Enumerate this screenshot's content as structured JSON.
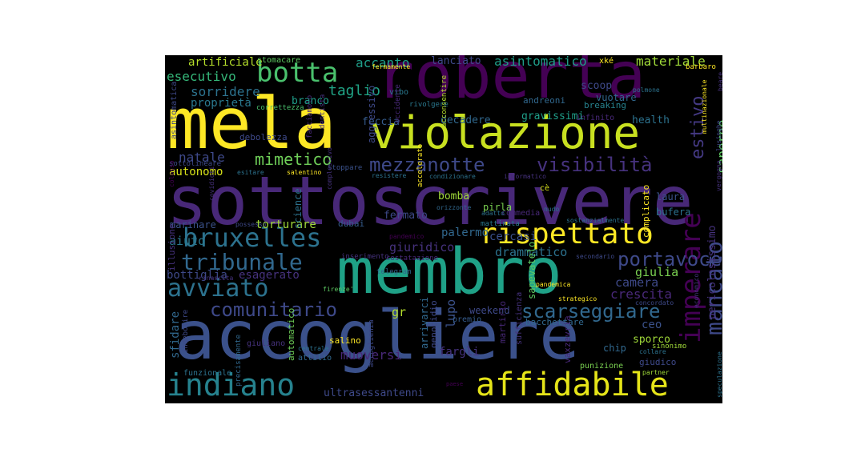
{
  "word_cloud": {
    "background": "#000000",
    "palette": [
      "#440154",
      "#46327e",
      "#365c8d",
      "#277f8e",
      "#1fa187",
      "#4ac16d",
      "#a0da39",
      "#fde725"
    ],
    "words": [
      {
        "text": "roberta",
        "color": "#440154"
      },
      {
        "text": "mela",
        "color": "#fde725"
      },
      {
        "text": "violazione",
        "color": "#c8e020"
      },
      {
        "text": "sottoscrivere",
        "color": "#482878"
      },
      {
        "text": "membro",
        "color": "#1fa187"
      },
      {
        "text": "accogliere",
        "color": "#3b518b"
      },
      {
        "text": "bruxelles",
        "color": "#2c728e"
      },
      {
        "text": "rispettato",
        "color": "#fde725"
      },
      {
        "text": "affidabile",
        "color": "#e5e419"
      },
      {
        "text": "indiano",
        "color": "#26828e"
      },
      {
        "text": "avviato",
        "color": "#2c728e"
      },
      {
        "text": "tribunale",
        "color": "#31688e"
      },
      {
        "text": "comunitario",
        "color": "#3e4989"
      },
      {
        "text": "botta",
        "color": "#4ac16d"
      },
      {
        "text": "mezzanotte",
        "color": "#3e4989"
      },
      {
        "text": "visibilità",
        "color": "#46327e"
      },
      {
        "text": "imperare",
        "color": "#440154"
      },
      {
        "text": "scarseggiare",
        "color": "#31688e"
      },
      {
        "text": "mimetico",
        "color": "#6ece58"
      },
      {
        "text": "portavoce",
        "color": "#3e4989"
      },
      {
        "text": "mancato",
        "color": "#3e4989"
      },
      {
        "text": "estivo",
        "color": "#443983"
      },
      {
        "text": "saperne",
        "color": "#5ec962"
      },
      {
        "text": "accanto",
        "color": "#1f9e89"
      },
      {
        "text": "asintomatico",
        "color": "#1f9e89"
      },
      {
        "text": "materiale",
        "color": "#a0da39"
      },
      {
        "text": "esecutivo",
        "color": "#35b779"
      },
      {
        "text": "sorridere",
        "color": "#2c728e"
      },
      {
        "text": "taglio",
        "color": "#20a486"
      },
      {
        "text": "artificiale",
        "color": "#b5de2b"
      },
      {
        "text": "lanciato",
        "color": "#3e4989"
      },
      {
        "text": "autonomo",
        "color": "#d8e219"
      },
      {
        "text": "natale",
        "color": "#3e4989"
      },
      {
        "text": "aiuto",
        "color": "#2a788e"
      },
      {
        "text": "torturare",
        "color": "#a0da39"
      },
      {
        "text": "palermo",
        "color": "#31688e"
      },
      {
        "text": "giuridico",
        "color": "#46327e"
      },
      {
        "text": "drammatico",
        "color": "#2c728e"
      },
      {
        "text": "cercasi",
        "color": "#3b518b"
      },
      {
        "text": "crescita",
        "color": "#482878"
      },
      {
        "text": "camera",
        "color": "#3e4989"
      },
      {
        "text": "giulia",
        "color": "#7ad151"
      },
      {
        "text": "lupo",
        "color": "#3b528b"
      },
      {
        "text": "fargli",
        "color": "#46327e"
      },
      {
        "text": "muoversi",
        "color": "#482878"
      },
      {
        "text": "ultrasessantenni",
        "color": "#3e4989"
      },
      {
        "text": "ceo",
        "color": "#3b528b"
      },
      {
        "text": "sfidare",
        "color": "#31688e"
      },
      {
        "text": "esagerato",
        "color": "#46327e"
      },
      {
        "text": "bottiglia",
        "color": "#3e4989"
      },
      {
        "text": "proprietà",
        "color": "#2a788e"
      },
      {
        "text": "branco",
        "color": "#1f9e89"
      },
      {
        "text": "feccia",
        "color": "#365c8d"
      },
      {
        "text": "decadere",
        "color": "#31688e"
      },
      {
        "text": "gravissimi",
        "color": "#1f9e89"
      },
      {
        "text": "health",
        "color": "#2c728e"
      },
      {
        "text": "scoop",
        "color": "#3e4989"
      },
      {
        "text": "vuotare",
        "color": "#31688e"
      },
      {
        "text": "andreoni",
        "color": "#31688e"
      },
      {
        "text": "breaking",
        "color": "#26828e"
      },
      {
        "text": "infinito",
        "color": "#482878"
      },
      {
        "text": "debolezza",
        "color": "#3e4989"
      },
      {
        "text": "aggressivo",
        "color": "#3e4989"
      },
      {
        "text": "pericolosissimo",
        "color": "#46327e"
      },
      {
        "text": "bomba",
        "color": "#a0da39"
      },
      {
        "text": "pirla",
        "color": "#7ad151"
      },
      {
        "text": "laura",
        "color": "#3b528b"
      },
      {
        "text": "bufera",
        "color": "#2c728e"
      },
      {
        "text": "complicato",
        "color": "#fde725"
      },
      {
        "text": "fermato",
        "color": "#3e4989"
      },
      {
        "text": "gr",
        "color": "#b5de2b"
      },
      {
        "text": "marinare",
        "color": "#3b528b"
      },
      {
        "text": "illusione",
        "color": "#46327e"
      },
      {
        "text": "dubai",
        "color": "#365c8d"
      },
      {
        "text": "science",
        "color": "#2c728e"
      },
      {
        "text": "salino",
        "color": "#fde725"
      },
      {
        "text": "chip",
        "color": "#31688e"
      },
      {
        "text": "sporco",
        "color": "#a0da39"
      },
      {
        "text": "giudico",
        "color": "#3e4989"
      },
      {
        "text": "weekend",
        "color": "#3e4989"
      },
      {
        "text": "bacchettare",
        "color": "#31688e"
      },
      {
        "text": "premio",
        "color": "#365c8d"
      },
      {
        "text": "martirio",
        "color": "#482878"
      },
      {
        "text": "sapevatelo",
        "color": "#5ec962"
      },
      {
        "text": "sufficienza",
        "color": "#46327e"
      },
      {
        "text": "vaxzevria",
        "color": "#482878"
      },
      {
        "text": "punizione",
        "color": "#7ad151"
      },
      {
        "text": "arrivarci",
        "color": "#31688e"
      },
      {
        "text": "genocidio",
        "color": "#3e4989"
      },
      {
        "text": "automatico",
        "color": "#6ece58"
      },
      {
        "text": "attilio",
        "color": "#31688e"
      },
      {
        "text": "giuliano",
        "color": "#46327e"
      },
      {
        "text": "precisamente",
        "color": "#31688e"
      },
      {
        "text": "indebolire",
        "color": "#3e4989"
      },
      {
        "text": "funzionale",
        "color": "#2c728e"
      },
      {
        "text": "stomacare",
        "color": "#5ec962"
      },
      {
        "text": "correttezza",
        "color": "#4ac16d"
      },
      {
        "text": "fermamente",
        "color": "#fde725"
      },
      {
        "text": "acconsentire",
        "color": "#b5de2b"
      },
      {
        "text": "xké",
        "color": "#fde725"
      },
      {
        "text": "barbaro",
        "color": "#fde725"
      },
      {
        "text": "polmone",
        "color": "#2c728e"
      },
      {
        "text": "multinazionale",
        "color": "#fde725"
      },
      {
        "text": "lusinghe",
        "color": "#3e4989"
      },
      {
        "text": "beare",
        "color": "#46327e"
      },
      {
        "text": "vibo",
        "color": "#2a788e"
      },
      {
        "text": "rivolgere",
        "color": "#2a788e"
      },
      {
        "text": "occidente",
        "color": "#482878"
      },
      {
        "text": "dentista",
        "color": "#46327e"
      },
      {
        "text": "facciamolo",
        "color": "#482878"
      },
      {
        "text": "asintomatica",
        "color": "#3e4989"
      },
      {
        "text": "sottolineare",
        "color": "#3e4989"
      },
      {
        "text": "esitare",
        "color": "#2c728e"
      },
      {
        "text": "salentino",
        "color": "#fde725"
      },
      {
        "text": "stoppare",
        "color": "#3b528b"
      },
      {
        "text": "resistere",
        "color": "#2c728e"
      },
      {
        "text": "condizionare",
        "color": "#2c728e"
      },
      {
        "text": "informatico",
        "color": "#46327e"
      },
      {
        "text": "cè",
        "color": "#d8e219"
      },
      {
        "text": "orizzonte",
        "color": "#31688e"
      },
      {
        "text": "commedia",
        "color": "#482878"
      },
      {
        "text": "adatto",
        "color": "#2c728e"
      },
      {
        "text": "nudo",
        "color": "#2c728e"
      },
      {
        "text": "accelerato",
        "color": "#fde725"
      },
      {
        "text": "complessivo",
        "color": "#46327e"
      },
      {
        "text": "sostanzialmente",
        "color": "#2c728e"
      },
      {
        "text": "possesso",
        "color": "#3e4989"
      },
      {
        "text": "covidioti",
        "color": "#46327e"
      },
      {
        "text": "colosso",
        "color": "#440154"
      },
      {
        "text": "mattinata",
        "color": "#2a788e"
      },
      {
        "text": "pandemico",
        "color": "#440154"
      },
      {
        "text": "costatazione",
        "color": "#482878"
      },
      {
        "text": "inserimento",
        "color": "#46327e"
      },
      {
        "text": "secondario",
        "color": "#3e4989"
      },
      {
        "text": "rinascita",
        "color": "#46327e"
      },
      {
        "text": "telegram",
        "color": "#31688e"
      },
      {
        "text": "pandemica",
        "color": "#fde725"
      },
      {
        "text": "firenze'",
        "color": "#5ec962"
      },
      {
        "text": "strategico",
        "color": "#fde725"
      },
      {
        "text": "concordato",
        "color": "#3e4989"
      },
      {
        "text": "economico",
        "color": "#46327e"
      },
      {
        "text": "accoglienza",
        "color": "#3e4989"
      },
      {
        "text": "centrale",
        "color": "#2c728e"
      },
      {
        "text": "collare",
        "color": "#2c728e"
      },
      {
        "text": "sinonimo",
        "color": "#a0da39"
      },
      {
        "text": "partner",
        "color": "#a0da39"
      },
      {
        "text": "speculazione",
        "color": "#2c728e"
      },
      {
        "text": "paese",
        "color": "#440154"
      },
      {
        "text": "vergogna",
        "color": "#46327e"
      }
    ]
  }
}
